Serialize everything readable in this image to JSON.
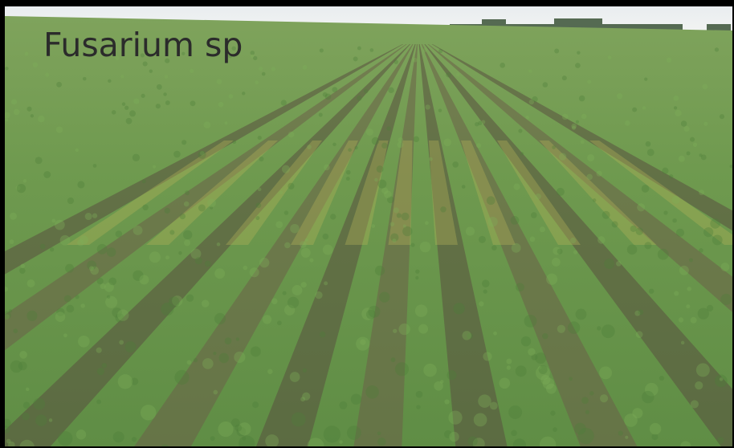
{
  "caption": "Fusarium sp"
}
